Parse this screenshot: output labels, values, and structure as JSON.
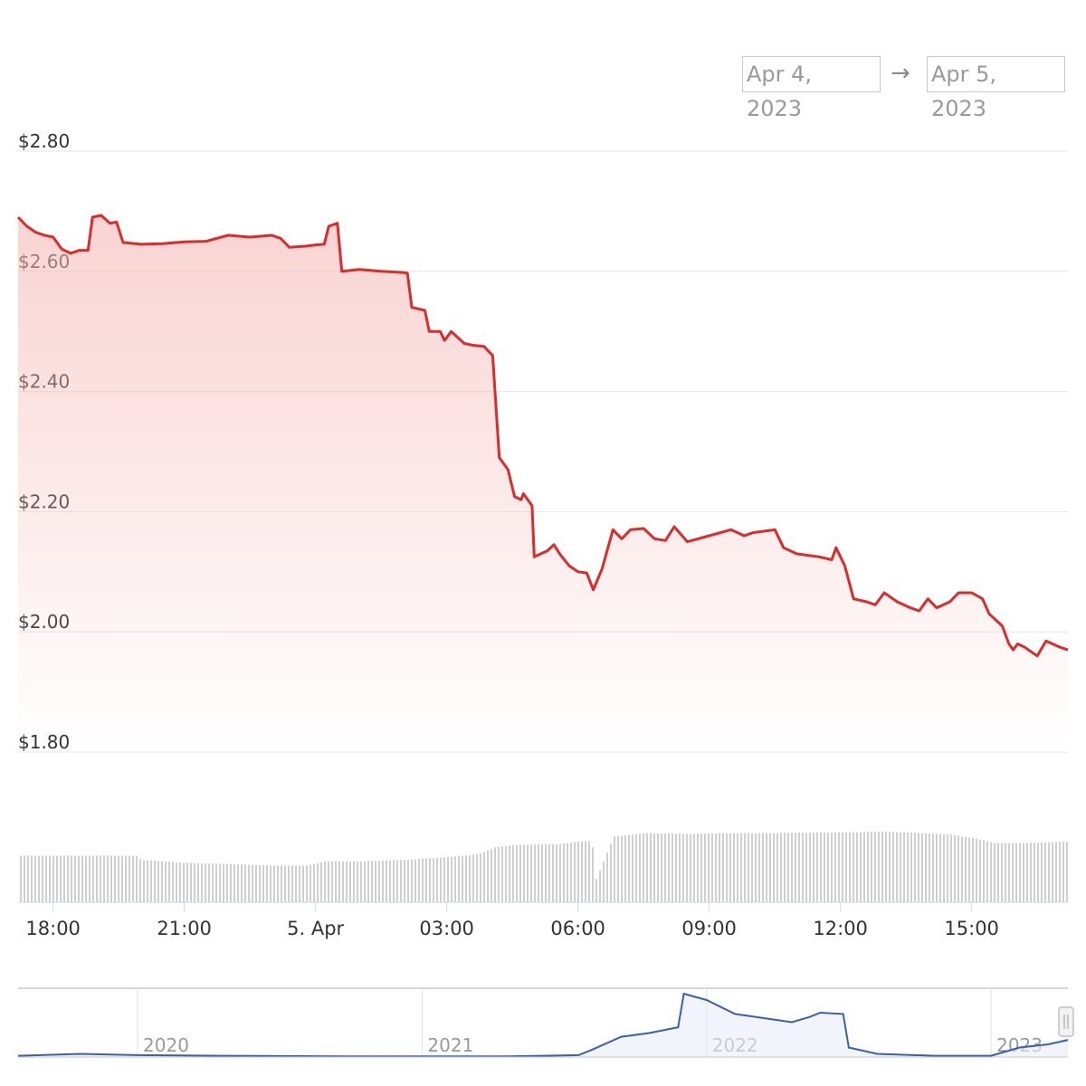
{
  "range": {
    "from": "Apr 4, 2023",
    "arrow": "→",
    "to": "Apr 5, 2023"
  },
  "colors": {
    "price_line": "#dc2b2b",
    "price_fill": "#f4b7b4",
    "volume_bar": "#cfcfcf",
    "navigator_line": "#3a5fb0",
    "grid": "#e6e6e6"
  },
  "chart_data": [
    {
      "type": "area",
      "id": "price",
      "ylim": [
        1.8,
        2.8
      ],
      "y_tick_labels": [
        "$1.80",
        "$2.00",
        "$2.20",
        "$2.40",
        "$2.60",
        "$2.80"
      ],
      "y_ticks": [
        1.8,
        2.0,
        2.2,
        2.4,
        2.6,
        2.8
      ],
      "x_range_hours": [
        17.2,
        41.2
      ],
      "x_tick_labels": [
        "18:00",
        "21:00",
        "5. Apr",
        "03:00",
        "06:00",
        "09:00",
        "12:00",
        "15:00"
      ],
      "x_ticks_hours": [
        18,
        21,
        24,
        27,
        30,
        33,
        36,
        39
      ],
      "x_unit_note": "hours from Apr 4 00:00",
      "series": [
        {
          "points": [
            [
              17.2,
              2.69
            ],
            [
              17.4,
              2.675
            ],
            [
              17.6,
              2.665
            ],
            [
              17.8,
              2.66
            ],
            [
              18.0,
              2.657
            ],
            [
              18.2,
              2.637
            ],
            [
              18.4,
              2.63
            ],
            [
              18.6,
              2.635
            ],
            [
              18.8,
              2.635
            ],
            [
              18.9,
              2.69
            ],
            [
              19.1,
              2.693
            ],
            [
              19.3,
              2.68
            ],
            [
              19.45,
              2.682
            ],
            [
              19.6,
              2.648
            ],
            [
              20.0,
              2.645
            ],
            [
              20.5,
              2.646
            ],
            [
              21.0,
              2.649
            ],
            [
              21.5,
              2.65
            ],
            [
              22.0,
              2.66
            ],
            [
              22.5,
              2.657
            ],
            [
              23.0,
              2.66
            ],
            [
              23.2,
              2.655
            ],
            [
              23.4,
              2.64
            ],
            [
              23.8,
              2.642
            ],
            [
              24.0,
              2.644
            ],
            [
              24.2,
              2.645
            ],
            [
              24.3,
              2.675
            ],
            [
              24.5,
              2.68
            ],
            [
              24.6,
              2.6
            ],
            [
              25.0,
              2.603
            ],
            [
              25.5,
              2.6
            ],
            [
              26.0,
              2.598
            ],
            [
              26.1,
              2.597
            ],
            [
              26.2,
              2.54
            ],
            [
              26.5,
              2.535
            ],
            [
              26.6,
              2.5
            ],
            [
              26.85,
              2.5
            ],
            [
              26.95,
              2.485
            ],
            [
              27.1,
              2.5
            ],
            [
              27.4,
              2.48
            ],
            [
              27.6,
              2.477
            ],
            [
              27.85,
              2.475
            ],
            [
              28.05,
              2.46
            ],
            [
              28.2,
              2.29
            ],
            [
              28.4,
              2.27
            ],
            [
              28.55,
              2.225
            ],
            [
              28.7,
              2.22
            ],
            [
              28.75,
              2.23
            ],
            [
              28.95,
              2.21
            ],
            [
              29.0,
              2.125
            ],
            [
              29.3,
              2.135
            ],
            [
              29.45,
              2.145
            ],
            [
              29.6,
              2.128
            ],
            [
              29.8,
              2.11
            ],
            [
              30.0,
              2.1
            ],
            [
              30.2,
              2.098
            ],
            [
              30.35,
              2.07
            ],
            [
              30.55,
              2.105
            ],
            [
              30.8,
              2.17
            ],
            [
              31.0,
              2.155
            ],
            [
              31.2,
              2.17
            ],
            [
              31.5,
              2.172
            ],
            [
              31.75,
              2.155
            ],
            [
              32.0,
              2.152
            ],
            [
              32.2,
              2.175
            ],
            [
              32.5,
              2.15
            ],
            [
              33.0,
              2.16
            ],
            [
              33.5,
              2.17
            ],
            [
              33.8,
              2.16
            ],
            [
              34.0,
              2.165
            ],
            [
              34.5,
              2.17
            ],
            [
              34.7,
              2.14
            ],
            [
              35.0,
              2.13
            ],
            [
              35.5,
              2.125
            ],
            [
              35.8,
              2.12
            ],
            [
              35.9,
              2.14
            ],
            [
              36.1,
              2.11
            ],
            [
              36.3,
              2.055
            ],
            [
              36.6,
              2.05
            ],
            [
              36.8,
              2.045
            ],
            [
              37.0,
              2.065
            ],
            [
              37.3,
              2.05
            ],
            [
              37.6,
              2.04
            ],
            [
              37.8,
              2.035
            ],
            [
              38.0,
              2.055
            ],
            [
              38.2,
              2.04
            ],
            [
              38.5,
              2.05
            ],
            [
              38.7,
              2.065
            ],
            [
              39.0,
              2.065
            ],
            [
              39.25,
              2.055
            ],
            [
              39.4,
              2.03
            ],
            [
              39.7,
              2.01
            ],
            [
              39.85,
              1.98
            ],
            [
              39.95,
              1.97
            ],
            [
              40.05,
              1.98
            ],
            [
              40.2,
              1.975
            ],
            [
              40.5,
              1.96
            ],
            [
              40.7,
              1.985
            ],
            [
              41.0,
              1.975
            ],
            [
              41.2,
              1.97
            ]
          ]
        }
      ]
    },
    {
      "type": "bar",
      "id": "volume",
      "x_range_hours": [
        17.2,
        41.2
      ],
      "values_relative": [
        [
          17.2,
          0.66
        ],
        [
          18.0,
          0.66
        ],
        [
          19.0,
          0.66
        ],
        [
          19.9,
          0.66
        ],
        [
          20.0,
          0.6
        ],
        [
          21.0,
          0.56
        ],
        [
          22.0,
          0.54
        ],
        [
          23.0,
          0.52
        ],
        [
          23.8,
          0.52
        ],
        [
          24.2,
          0.58
        ],
        [
          25.0,
          0.58
        ],
        [
          26.0,
          0.6
        ],
        [
          27.0,
          0.64
        ],
        [
          27.7,
          0.68
        ],
        [
          28.1,
          0.78
        ],
        [
          28.5,
          0.81
        ],
        [
          29.0,
          0.82
        ],
        [
          29.5,
          0.82
        ],
        [
          30.0,
          0.86
        ],
        [
          30.3,
          0.87
        ],
        [
          30.4,
          0.33
        ],
        [
          30.8,
          0.93
        ],
        [
          31.5,
          0.98
        ],
        [
          32.5,
          0.97
        ],
        [
          33.5,
          0.98
        ],
        [
          34.5,
          0.98
        ],
        [
          35.5,
          0.99
        ],
        [
          36.2,
          0.99
        ],
        [
          36.9,
          1.0
        ],
        [
          37.5,
          0.99
        ],
        [
          38.5,
          0.96
        ],
        [
          39.1,
          0.9
        ],
        [
          39.5,
          0.84
        ],
        [
          40.2,
          0.84
        ],
        [
          41.2,
          0.86
        ]
      ]
    },
    {
      "type": "line",
      "id": "navigator",
      "x_tick_labels": [
        "2020",
        "2021",
        "2022",
        "2023"
      ],
      "x_ticks_years": [
        2020,
        2021,
        2022,
        2023
      ],
      "x_range_years": [
        2019.58,
        2023.27
      ],
      "values_relative": [
        [
          2019.58,
          0.02
        ],
        [
          2019.8,
          0.05
        ],
        [
          2020.0,
          0.03
        ],
        [
          2020.3,
          0.02
        ],
        [
          2020.8,
          0.01
        ],
        [
          2021.0,
          0.01
        ],
        [
          2021.3,
          0.01
        ],
        [
          2021.55,
          0.03
        ],
        [
          2021.6,
          0.12
        ],
        [
          2021.7,
          0.32
        ],
        [
          2021.8,
          0.38
        ],
        [
          2021.9,
          0.47
        ],
        [
          2021.92,
          1.0
        ],
        [
          2022.0,
          0.9
        ],
        [
          2022.1,
          0.68
        ],
        [
          2022.3,
          0.55
        ],
        [
          2022.36,
          0.63
        ],
        [
          2022.4,
          0.7
        ],
        [
          2022.48,
          0.68
        ],
        [
          2022.5,
          0.15
        ],
        [
          2022.6,
          0.05
        ],
        [
          2022.8,
          0.02
        ],
        [
          2023.0,
          0.02
        ],
        [
          2023.1,
          0.15
        ],
        [
          2023.2,
          0.2
        ],
        [
          2023.27,
          0.27
        ]
      ]
    }
  ]
}
